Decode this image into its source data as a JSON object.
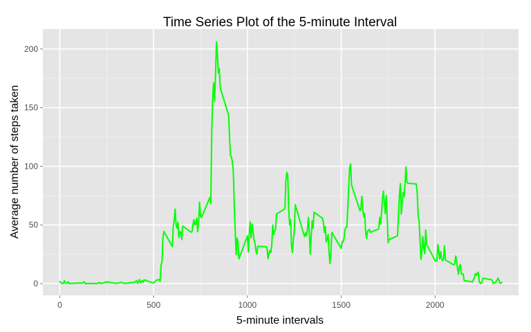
{
  "chart_data": {
    "type": "line",
    "title": "Time Series Plot of the 5-minute Interval",
    "xlabel": "5-minute intervals",
    "ylabel": "Average number of steps taken",
    "xlim": [
      -90,
      2445
    ],
    "ylim": [
      -10,
      217
    ],
    "x_ticks": [
      0,
      500,
      1000,
      1500,
      2000
    ],
    "y_ticks": [
      0,
      50,
      100,
      150,
      200
    ],
    "x_minor_ticks": [
      250,
      750,
      1250,
      1750,
      2250
    ],
    "y_minor_ticks": [
      25,
      75,
      125,
      175
    ],
    "grid": true,
    "panel_color": "#e5e5e5",
    "grid_color": "#ffffff",
    "line_color": "#00ff00",
    "series": [
      {
        "points": [
          [
            0,
            1.7
          ],
          [
            10,
            0.3
          ],
          [
            20,
            0.1
          ],
          [
            25,
            2.5
          ],
          [
            30,
            0.5
          ],
          [
            40,
            0.3
          ],
          [
            45,
            1.6
          ],
          [
            50,
            0.1
          ],
          [
            100,
            0.5
          ],
          [
            120,
            0.4
          ],
          [
            130,
            1.5
          ],
          [
            135,
            0.1
          ],
          [
            150,
            0.1
          ],
          [
            200,
            0.1
          ],
          [
            205,
            0.3
          ],
          [
            210,
            1.1
          ],
          [
            220,
            0.0
          ],
          [
            250,
            1.5
          ],
          [
            300,
            0.2
          ],
          [
            330,
            1.1
          ],
          [
            345,
            0.1
          ],
          [
            400,
            1.2
          ],
          [
            410,
            2.6
          ],
          [
            415,
            0.2
          ],
          [
            425,
            3.5
          ],
          [
            430,
            0.5
          ],
          [
            440,
            2.8
          ],
          [
            445,
            1.2
          ],
          [
            450,
            3.2
          ],
          [
            500,
            0.5
          ],
          [
            515,
            3.0
          ],
          [
            530,
            3.4
          ],
          [
            535,
            2.0
          ],
          [
            540,
            16.0
          ],
          [
            545,
            18.3
          ],
          [
            550,
            39.5
          ],
          [
            555,
            44.5
          ],
          [
            600,
            31.5
          ],
          [
            605,
            49.3
          ],
          [
            610,
            53.8
          ],
          [
            615,
            63.5
          ],
          [
            620,
            50.0
          ],
          [
            625,
            47.1
          ],
          [
            630,
            52.2
          ],
          [
            635,
            39.3
          ],
          [
            640,
            44.0
          ],
          [
            645,
            44.2
          ],
          [
            650,
            37.4
          ],
          [
            655,
            49.0
          ],
          [
            700,
            43.8
          ],
          [
            705,
            44.4
          ],
          [
            710,
            50.5
          ],
          [
            715,
            54.5
          ],
          [
            720,
            49.9
          ],
          [
            725,
            51.0
          ],
          [
            730,
            55.7
          ],
          [
            735,
            44.3
          ],
          [
            740,
            52.3
          ],
          [
            745,
            69.5
          ],
          [
            750,
            57.8
          ],
          [
            755,
            56.2
          ],
          [
            800,
            73.4
          ],
          [
            805,
            68.2
          ],
          [
            810,
            129.4
          ],
          [
            815,
            157.5
          ],
          [
            820,
            171.2
          ],
          [
            825,
            155.4
          ],
          [
            830,
            177.3
          ],
          [
            835,
            206.2
          ],
          [
            840,
            195.9
          ],
          [
            845,
            179.6
          ],
          [
            850,
            183.4
          ],
          [
            855,
            167.0
          ],
          [
            900,
            143.5
          ],
          [
            905,
            124.0
          ],
          [
            910,
            109.1
          ],
          [
            915,
            108.1
          ],
          [
            920,
            103.7
          ],
          [
            925,
            95.9
          ],
          [
            930,
            66.2
          ],
          [
            935,
            45.2
          ],
          [
            940,
            24.8
          ],
          [
            945,
            38.8
          ],
          [
            950,
            34.9
          ],
          [
            955,
            21.1
          ],
          [
            1000,
            40.6
          ],
          [
            1005,
            26.9
          ],
          [
            1010,
            42.4
          ],
          [
            1015,
            52.7
          ],
          [
            1020,
            38.9
          ],
          [
            1025,
            50.8
          ],
          [
            1030,
            44.3
          ],
          [
            1035,
            37.4
          ],
          [
            1040,
            34.7
          ],
          [
            1045,
            28.3
          ],
          [
            1050,
            25.1
          ],
          [
            1055,
            31.9
          ],
          [
            1100,
            31.4
          ],
          [
            1105,
            29.7
          ],
          [
            1110,
            21.3
          ],
          [
            1115,
            25.5
          ],
          [
            1120,
            28.4
          ],
          [
            1125,
            26.5
          ],
          [
            1130,
            33.4
          ],
          [
            1135,
            49.9
          ],
          [
            1140,
            42.0
          ],
          [
            1145,
            44.6
          ],
          [
            1150,
            46.0
          ],
          [
            1155,
            59.2
          ],
          [
            1200,
            63.9
          ],
          [
            1205,
            87.7
          ],
          [
            1210,
            94.8
          ],
          [
            1215,
            92.8
          ],
          [
            1220,
            63.4
          ],
          [
            1225,
            50.2
          ],
          [
            1230,
            54.5
          ],
          [
            1235,
            32.4
          ],
          [
            1240,
            26.5
          ],
          [
            1245,
            37.7
          ],
          [
            1250,
            45.1
          ],
          [
            1255,
            67.3
          ],
          [
            1300,
            42.3
          ],
          [
            1305,
            39.9
          ],
          [
            1310,
            43.3
          ],
          [
            1315,
            40.9
          ],
          [
            1320,
            46.2
          ],
          [
            1325,
            56.4
          ],
          [
            1330,
            42.8
          ],
          [
            1335,
            25.1
          ],
          [
            1340,
            39.9
          ],
          [
            1345,
            53.5
          ],
          [
            1350,
            47.3
          ],
          [
            1355,
            60.8
          ],
          [
            1400,
            55.8
          ],
          [
            1405,
            51.9
          ],
          [
            1410,
            43.6
          ],
          [
            1415,
            48.7
          ],
          [
            1420,
            35.5
          ],
          [
            1425,
            37.6
          ],
          [
            1430,
            41.8
          ],
          [
            1435,
            27.5
          ],
          [
            1440,
            17.1
          ],
          [
            1445,
            26.1
          ],
          [
            1450,
            43.6
          ],
          [
            1500,
            30.0
          ],
          [
            1505,
            36.1
          ],
          [
            1510,
            35.5
          ],
          [
            1515,
            38.8
          ],
          [
            1520,
            46.0
          ],
          [
            1525,
            47.8
          ],
          [
            1530,
            48.1
          ],
          [
            1535,
            65.3
          ],
          [
            1540,
            82.9
          ],
          [
            1545,
            98.7
          ],
          [
            1550,
            102.1
          ],
          [
            1555,
            84.0
          ],
          [
            1600,
            62.1
          ],
          [
            1605,
            64.1
          ],
          [
            1610,
            74.5
          ],
          [
            1615,
            63.2
          ],
          [
            1620,
            56.9
          ],
          [
            1625,
            59.8
          ],
          [
            1630,
            43.9
          ],
          [
            1635,
            38.6
          ],
          [
            1640,
            44.7
          ],
          [
            1645,
            45.5
          ],
          [
            1650,
            46.2
          ],
          [
            1655,
            43.7
          ],
          [
            1700,
            46.6
          ],
          [
            1705,
            56.3
          ],
          [
            1710,
            50.7
          ],
          [
            1715,
            61.2
          ],
          [
            1720,
            72.7
          ],
          [
            1725,
            78.9
          ],
          [
            1730,
            68.9
          ],
          [
            1735,
            59.7
          ],
          [
            1740,
            75.1
          ],
          [
            1745,
            56.5
          ],
          [
            1750,
            34.8
          ],
          [
            1755,
            37.5
          ],
          [
            1800,
            40.7
          ],
          [
            1805,
            58.0
          ],
          [
            1810,
            74.7
          ],
          [
            1815,
            85.3
          ],
          [
            1820,
            59.3
          ],
          [
            1825,
            67.8
          ],
          [
            1830,
            77.7
          ],
          [
            1835,
            74.2
          ],
          [
            1840,
            85.3
          ],
          [
            1845,
            99.5
          ],
          [
            1850,
            86.6
          ],
          [
            1855,
            85.6
          ],
          [
            1900,
            84.9
          ],
          [
            1905,
            77.8
          ],
          [
            1910,
            58.0
          ],
          [
            1915,
            53.4
          ],
          [
            1920,
            36.3
          ],
          [
            1925,
            20.7
          ],
          [
            1930,
            27.4
          ],
          [
            1935,
            40.0
          ],
          [
            1940,
            30.2
          ],
          [
            1945,
            25.5
          ],
          [
            1950,
            45.7
          ],
          [
            1955,
            33.5
          ],
          [
            2000,
            19.6
          ],
          [
            2005,
            19.0
          ],
          [
            2010,
            19.3
          ],
          [
            2015,
            33.3
          ],
          [
            2020,
            26.8
          ],
          [
            2025,
            21.2
          ],
          [
            2030,
            27.3
          ],
          [
            2035,
            21.3
          ],
          [
            2040,
            19.5
          ],
          [
            2045,
            21.3
          ],
          [
            2050,
            32.3
          ],
          [
            2055,
            20.2
          ],
          [
            2100,
            15.9
          ],
          [
            2105,
            17.2
          ],
          [
            2110,
            23.5
          ],
          [
            2115,
            19.2
          ],
          [
            2120,
            12.5
          ],
          [
            2125,
            8.0
          ],
          [
            2130,
            14.7
          ],
          [
            2135,
            16.3
          ],
          [
            2140,
            8.7
          ],
          [
            2145,
            7.8
          ],
          [
            2150,
            8.1
          ],
          [
            2155,
            2.6
          ],
          [
            2200,
            1.5
          ],
          [
            2205,
            3.7
          ],
          [
            2210,
            4.8
          ],
          [
            2215,
            8.5
          ],
          [
            2220,
            7.1
          ],
          [
            2225,
            8.7
          ],
          [
            2230,
            9.8
          ],
          [
            2235,
            2.2
          ],
          [
            2240,
            0.3
          ],
          [
            2245,
            0.1
          ],
          [
            2250,
            1.6
          ],
          [
            2255,
            4.6
          ],
          [
            2300,
            3.3
          ],
          [
            2305,
            2.8
          ],
          [
            2310,
            0.0
          ],
          [
            2315,
            0.8
          ],
          [
            2320,
            1.0
          ],
          [
            2325,
            1.6
          ],
          [
            2330,
            2.6
          ],
          [
            2335,
            4.7
          ],
          [
            2340,
            3.3
          ],
          [
            2345,
            0.6
          ],
          [
            2350,
            0.2
          ],
          [
            2355,
            1.1
          ]
        ]
      }
    ]
  }
}
